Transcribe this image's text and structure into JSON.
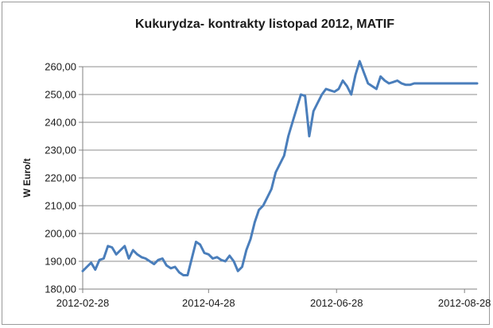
{
  "chart_data": {
    "type": "line",
    "title": "Kukurydza- kontrakty listopad 2012, MATIF",
    "xlabel": "",
    "ylabel": "W Euro/t",
    "ylim": [
      180,
      260
    ],
    "y_ticks": [
      "180,00",
      "190,00",
      "200,00",
      "210,00",
      "220,00",
      "230,00",
      "240,00",
      "250,00",
      "260,00"
    ],
    "x_range": [
      "2012-02-28",
      "2012-09-03"
    ],
    "x_ticks": [
      "2012-02-28",
      "2012-04-28",
      "2012-06-28",
      "2012-08-28"
    ],
    "grid": "horizontal",
    "line_color": "#4a7ebb",
    "series": [
      {
        "x": [
          "2012-02-28",
          "2012-03-01",
          "2012-03-03",
          "2012-03-05",
          "2012-03-07",
          "2012-03-09",
          "2012-03-11",
          "2012-03-13",
          "2012-03-15",
          "2012-03-17",
          "2012-03-19",
          "2012-03-21",
          "2012-03-23",
          "2012-03-25",
          "2012-03-27",
          "2012-03-29",
          "2012-03-31",
          "2012-04-02",
          "2012-04-04",
          "2012-04-06",
          "2012-04-08",
          "2012-04-10",
          "2012-04-12",
          "2012-04-14",
          "2012-04-16",
          "2012-04-18",
          "2012-04-20",
          "2012-04-22",
          "2012-04-24",
          "2012-04-26",
          "2012-04-28",
          "2012-04-30",
          "2012-05-02",
          "2012-05-04",
          "2012-05-06",
          "2012-05-08",
          "2012-05-10",
          "2012-05-12",
          "2012-05-14",
          "2012-05-16",
          "2012-05-18",
          "2012-05-20",
          "2012-05-22",
          "2012-05-24",
          "2012-05-26",
          "2012-05-28",
          "2012-05-30",
          "2012-06-01",
          "2012-06-03",
          "2012-06-05",
          "2012-06-07",
          "2012-06-09",
          "2012-06-11",
          "2012-06-13",
          "2012-06-15",
          "2012-06-17",
          "2012-06-19",
          "2012-06-21",
          "2012-06-23",
          "2012-06-25",
          "2012-06-27",
          "2012-06-29",
          "2012-07-01",
          "2012-07-03",
          "2012-07-05",
          "2012-07-07",
          "2012-07-09",
          "2012-07-11",
          "2012-07-13",
          "2012-07-15",
          "2012-07-17",
          "2012-07-19",
          "2012-07-21",
          "2012-07-23",
          "2012-07-25",
          "2012-07-27",
          "2012-07-29",
          "2012-07-31",
          "2012-08-02",
          "2012-08-04",
          "2012-08-06",
          "2012-08-08",
          "2012-08-10",
          "2012-08-12",
          "2012-08-14",
          "2012-08-16",
          "2012-08-18",
          "2012-08-20",
          "2012-08-22",
          "2012-08-24",
          "2012-08-26",
          "2012-08-28",
          "2012-08-30",
          "2012-09-01",
          "2012-09-03"
        ],
        "values": [
          186.5,
          188.0,
          189.5,
          187.0,
          190.5,
          191.0,
          195.5,
          195.0,
          192.5,
          194.0,
          195.5,
          191.0,
          194.0,
          192.5,
          191.5,
          191.0,
          190.0,
          189.0,
          190.5,
          191.0,
          188.5,
          187.5,
          188.0,
          186.0,
          185.0,
          185.0,
          191.0,
          197.0,
          196.0,
          193.0,
          192.5,
          191.0,
          191.5,
          190.5,
          190.0,
          192.0,
          190.0,
          186.5,
          188.0,
          194.0,
          198.0,
          204.0,
          208.5,
          210.0,
          213.0,
          216.0,
          222.0,
          225.0,
          228.0,
          235.0,
          240.0,
          245.0,
          250.0,
          249.5,
          235.0,
          244.0,
          247.0,
          250.0,
          252.0,
          251.5,
          251.0,
          252.0,
          255.0,
          253.0,
          250.0,
          257.0,
          262.0,
          258.0,
          254.0,
          253.0,
          252.0,
          256.5,
          255.0,
          254.0,
          254.5,
          255.0,
          254.0,
          253.5,
          253.5,
          254.0,
          254.0,
          254.0,
          254.0,
          254.0,
          254.0,
          254.0,
          254.0,
          254.0,
          254.0,
          254.0,
          254.0,
          254.0,
          254.0,
          254.0,
          254.0
        ]
      }
    ]
  }
}
